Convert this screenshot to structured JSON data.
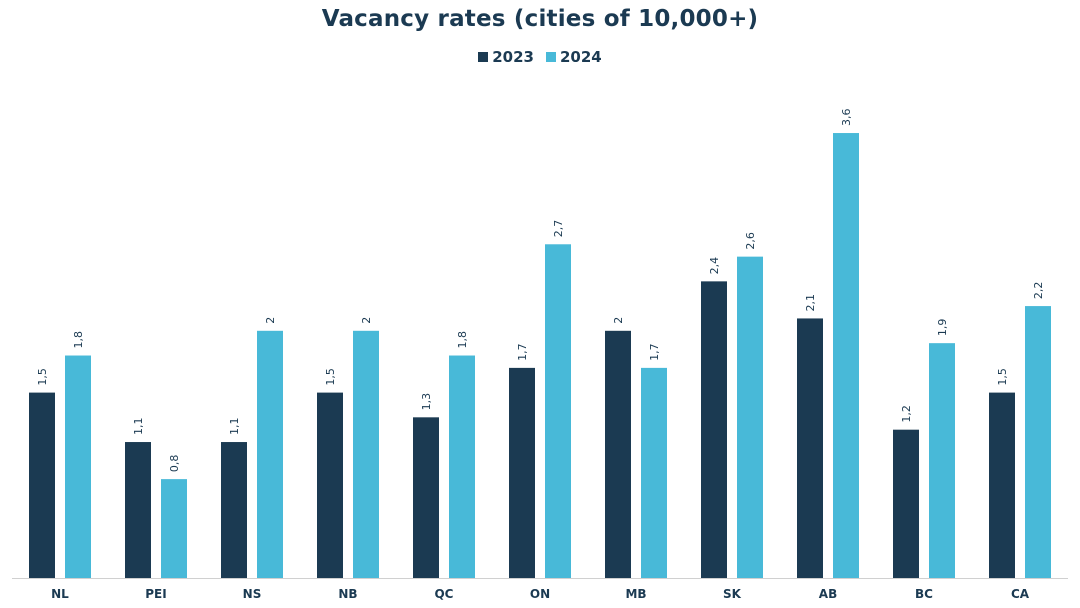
{
  "chart_data": {
    "type": "bar",
    "title": "Vacancy rates (cities of 10,000+)",
    "xlabel": "",
    "ylabel": "",
    "categories": [
      "NL",
      "PEI",
      "NS",
      "NB",
      "QC",
      "ON",
      "MB",
      "SK",
      "AB",
      "BC",
      "CA"
    ],
    "series": [
      {
        "name": "2023",
        "color": "#1b3a52",
        "values": [
          1.5,
          1.1,
          1.1,
          1.5,
          1.3,
          1.7,
          2,
          2.4,
          2.1,
          1.2,
          1.5
        ],
        "labels": [
          "1,5",
          "1,1",
          "1,1",
          "1,5",
          "1,3",
          "1,7",
          "2",
          "2,4",
          "2,1",
          "1,2",
          "1,5"
        ]
      },
      {
        "name": "2024",
        "color": "#48b9d8",
        "values": [
          1.8,
          0.8,
          2,
          2,
          1.8,
          2.7,
          1.7,
          2.6,
          3.6,
          1.9,
          2.2
        ],
        "labels": [
          "1,8",
          "0,8",
          "2",
          "2",
          "1,8",
          "2,7",
          "1,7",
          "2,6",
          "3,6",
          "1,9",
          "2,2"
        ]
      }
    ],
    "ylim": [
      0,
      3.6
    ],
    "grid": false,
    "legend_position": "top-center",
    "data_labels": true
  }
}
